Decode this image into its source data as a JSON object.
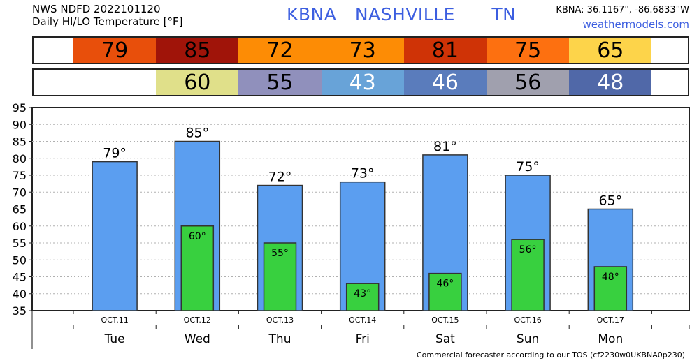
{
  "header": {
    "line1": "NWS NDFD 2022101120",
    "line2": "Daily HI/LO Temperature [°F]",
    "station": "KBNA",
    "city": "NASHVILLE",
    "state": "TN",
    "coords": "KBNA: 36.1167°, -86.6833°W",
    "site": "weathermodels.com"
  },
  "footer": {
    "text": "Commercial forecaster according to our TOS (cf2230w0UKBNA0p230)"
  },
  "colors": {
    "hi_bar": "#5b9ef0",
    "lo_bar": "#38d03f",
    "hi_cells": [
      "#e84f0b",
      "#a01409",
      "#fd8c05",
      "#fd8c05",
      "#cf3306",
      "#fd7010",
      "#fdd44a"
    ],
    "lo_cells": [
      "#e0e08a",
      "#9090bc",
      "#68a3d8",
      "#5a7cbc",
      "#a0a0ae",
      "#5068a8"
    ]
  },
  "chart_data": {
    "type": "bar",
    "title": "Daily HI/LO Temperature [°F]",
    "categories": [
      "Tue",
      "Wed",
      "Thu",
      "Fri",
      "Sat",
      "Sun",
      "Mon"
    ],
    "dates": [
      "OCT.11",
      "OCT.12",
      "OCT.13",
      "OCT.14",
      "OCT.15",
      "OCT.16",
      "OCT.17"
    ],
    "series": [
      {
        "name": "HI",
        "values": [
          79,
          85,
          72,
          73,
          81,
          75,
          65
        ]
      },
      {
        "name": "LO",
        "values": [
          null,
          60,
          55,
          43,
          46,
          56,
          48
        ]
      }
    ],
    "hi_labels": [
      "79°",
      "85°",
      "72°",
      "73°",
      "81°",
      "75°",
      "65°"
    ],
    "lo_labels": [
      "",
      "60°",
      "55°",
      "43°",
      "46°",
      "56°",
      "48°"
    ],
    "ylim": [
      35,
      95
    ],
    "yticks": [
      "35",
      "40",
      "45",
      "50",
      "55",
      "60",
      "65",
      "70",
      "75",
      "80",
      "85",
      "90",
      "95"
    ],
    "grid": true
  }
}
